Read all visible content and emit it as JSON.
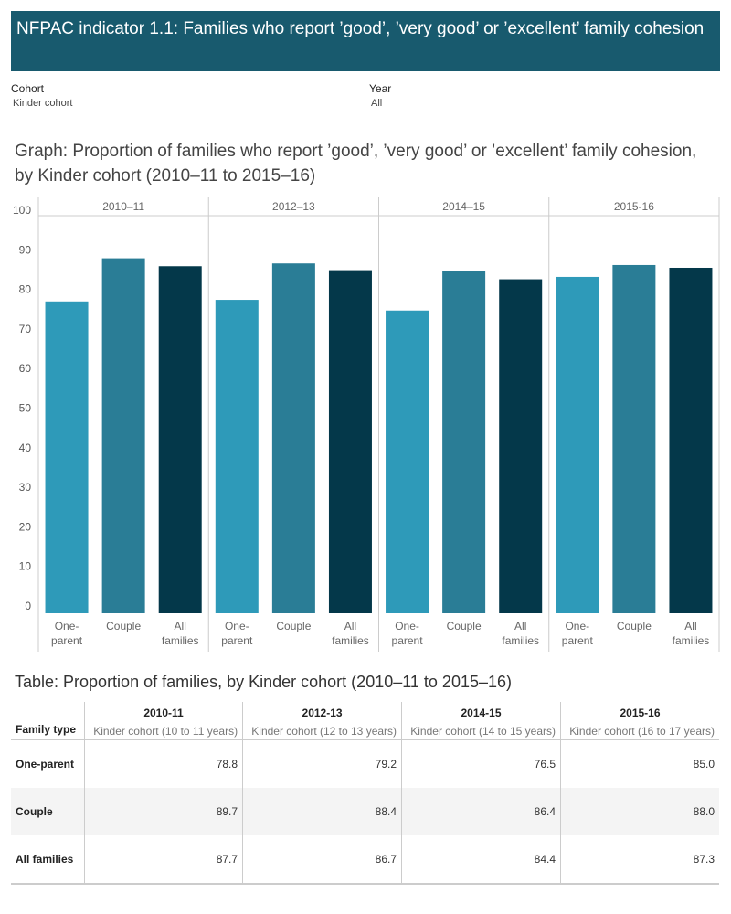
{
  "header": {
    "title": "NFPAC indicator 1.1: Families who report ’good’, ’very good’ or ’excellent’ family cohesion"
  },
  "filters": {
    "cohort_label": "Cohort",
    "cohort_value": "Kinder cohort",
    "year_label": "Year",
    "year_value": "All"
  },
  "colors": {
    "banner": "#185a6e",
    "One-parent": "#2e9ab9",
    "Couple": "#2a7d96",
    "All families": "#04384a"
  },
  "chart_data": {
    "type": "bar",
    "title": "Graph: Proportion of families who report ’good’, ’very good’ or ’excellent’ family cohesion, by Kinder cohort (2010–11 to 2015–16)",
    "panels": [
      "2010–11",
      "2012–13",
      "2014–15",
      "2015-16"
    ],
    "categories": [
      "One-parent",
      "Couple",
      "All families"
    ],
    "category_labels": [
      [
        "One-",
        "parent"
      ],
      [
        "Couple"
      ],
      [
        "All",
        "families"
      ]
    ],
    "values": [
      [
        78.8,
        89.7,
        87.7
      ],
      [
        79.2,
        88.4,
        86.7
      ],
      [
        76.5,
        86.4,
        84.4
      ],
      [
        85.0,
        88.0,
        87.3
      ]
    ],
    "yticks": [
      0,
      10,
      20,
      30,
      40,
      50,
      60,
      70,
      80,
      90,
      100
    ],
    "ylim": [
      0,
      100
    ],
    "grid": false
  },
  "table": {
    "title": "Table: Proportion of families, by Kinder cohort (2010–11 to 2015–16)",
    "row_header": "Family type",
    "years": [
      "2010-11",
      "2012-13",
      "2014-15",
      "2015-16"
    ],
    "subheaders": [
      "Kinder cohort (10 to 11 years)",
      "Kinder cohort (12 to 13 years)",
      "Kinder cohort (14 to 15 years)",
      "Kinder cohort (16 to 17 years)"
    ],
    "rows": [
      {
        "label": "One-parent",
        "values": [
          "78.8",
          "79.2",
          "76.5",
          "85.0"
        ]
      },
      {
        "label": "Couple",
        "values": [
          "89.7",
          "88.4",
          "86.4",
          "88.0"
        ]
      },
      {
        "label": "All families",
        "values": [
          "87.7",
          "86.7",
          "84.4",
          "87.3"
        ]
      }
    ]
  }
}
